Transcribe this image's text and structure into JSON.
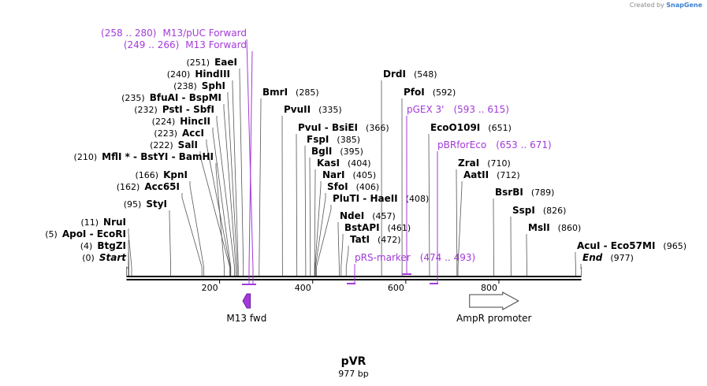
{
  "credit": {
    "prefix": "Created by",
    "brand": "SnapGene"
  },
  "plasmid": {
    "name": "pVR",
    "size_label": "977 bp",
    "length_bp": 977
  },
  "axis_ticks": [
    200,
    400,
    600,
    800
  ],
  "sites": [
    {
      "pos": 0,
      "pos_label": "(0)",
      "name": "Start",
      "italic": true
    },
    {
      "pos": 4,
      "pos_label": "(4)",
      "name": "BtgZI"
    },
    {
      "pos": 5,
      "pos_label": "(5)",
      "name": "ApoI  - EcoRI"
    },
    {
      "pos": 11,
      "pos_label": "(11)",
      "name": "NruI"
    },
    {
      "pos": 95,
      "pos_label": "(95)",
      "name": "StyI"
    },
    {
      "pos": 162,
      "pos_label": "(162)",
      "name": "Acc65I"
    },
    {
      "pos": 166,
      "pos_label": "(166)",
      "name": "KpnI"
    },
    {
      "pos": 210,
      "pos_label": "(210)",
      "name": "MflI * - BstYI  - BamHI"
    },
    {
      "pos": 222,
      "pos_label": "(222)",
      "name": "SalI"
    },
    {
      "pos": 223,
      "pos_label": "(223)",
      "name": "AccI"
    },
    {
      "pos": 224,
      "pos_label": "(224)",
      "name": "HincII"
    },
    {
      "pos": 232,
      "pos_label": "(232)",
      "name": "PstI  - SbfI"
    },
    {
      "pos": 235,
      "pos_label": "(235)",
      "name": "BfuAI  - BspMI"
    },
    {
      "pos": 238,
      "pos_label": "(238)",
      "name": "SphI"
    },
    {
      "pos": 240,
      "pos_label": "(240)",
      "name": "HindIII"
    },
    {
      "pos": 251,
      "pos_label": "(251)",
      "name": "EaeI"
    },
    {
      "pos": 285,
      "pos_label": "(285)",
      "name": "BmrI"
    },
    {
      "pos": 335,
      "pos_label": "(335)",
      "name": "PvuII"
    },
    {
      "pos": 366,
      "pos_label": "(366)",
      "name": "PvuI  - BsiEI"
    },
    {
      "pos": 385,
      "pos_label": "(385)",
      "name": "FspI"
    },
    {
      "pos": 395,
      "pos_label": "(395)",
      "name": "BglI"
    },
    {
      "pos": 404,
      "pos_label": "(404)",
      "name": "KasI"
    },
    {
      "pos": 405,
      "pos_label": "(405)",
      "name": "NarI"
    },
    {
      "pos": 406,
      "pos_label": "(406)",
      "name": "SfoI"
    },
    {
      "pos": 408,
      "pos_label": "(408)",
      "name": "PluTI  - HaeII"
    },
    {
      "pos": 457,
      "pos_label": "(457)",
      "name": "NdeI"
    },
    {
      "pos": 461,
      "pos_label": "(461)",
      "name": "BstAPI"
    },
    {
      "pos": 472,
      "pos_label": "(472)",
      "name": "TatI"
    },
    {
      "pos": 548,
      "pos_label": "(548)",
      "name": "DrdI"
    },
    {
      "pos": 592,
      "pos_label": "(592)",
      "name": "PfoI"
    },
    {
      "pos": 651,
      "pos_label": "(651)",
      "name": "EcoO109I"
    },
    {
      "pos": 710,
      "pos_label": "(710)",
      "name": "ZraI"
    },
    {
      "pos": 712,
      "pos_label": "(712)",
      "name": "AatII"
    },
    {
      "pos": 789,
      "pos_label": "(789)",
      "name": "BsrBI"
    },
    {
      "pos": 826,
      "pos_label": "(826)",
      "name": "SspI"
    },
    {
      "pos": 860,
      "pos_label": "(860)",
      "name": "MslI"
    },
    {
      "pos": 965,
      "pos_label": "(965)",
      "name": "AcuI  - Eco57MI"
    },
    {
      "pos": 977,
      "pos_label": "(977)",
      "name": "End",
      "italic": true
    }
  ],
  "primers": [
    {
      "name": "M13/pUC Forward",
      "range_label": "(258 .. 280)",
      "start": 258,
      "end": 280,
      "direction": "forward"
    },
    {
      "name": "M13 Forward",
      "range_label": "(249 .. 266)",
      "start": 249,
      "end": 266,
      "direction": "forward"
    },
    {
      "name": "pGEX 3'",
      "range_label": "(593 .. 615)",
      "start": 593,
      "end": 615,
      "direction": "forward"
    },
    {
      "name": "pBRforEco",
      "range_label": "(653 .. 671)",
      "start": 653,
      "end": 671,
      "direction": "forward"
    },
    {
      "name": "pRS-marker",
      "range_label": "(474 .. 493)",
      "start": 474,
      "end": 493,
      "direction": "forward"
    }
  ],
  "features": [
    {
      "name": "M13 fwd",
      "start": 250,
      "end": 266,
      "direction": "reverse",
      "color": "#a23ad8"
    },
    {
      "name": "AmpR promoter",
      "start": 737,
      "end": 842,
      "direction": "forward",
      "color": "#ffffff"
    }
  ],
  "colors": {
    "primer": "#a23ad8",
    "line": "#000000",
    "credit_brand": "#3a7fd0"
  }
}
